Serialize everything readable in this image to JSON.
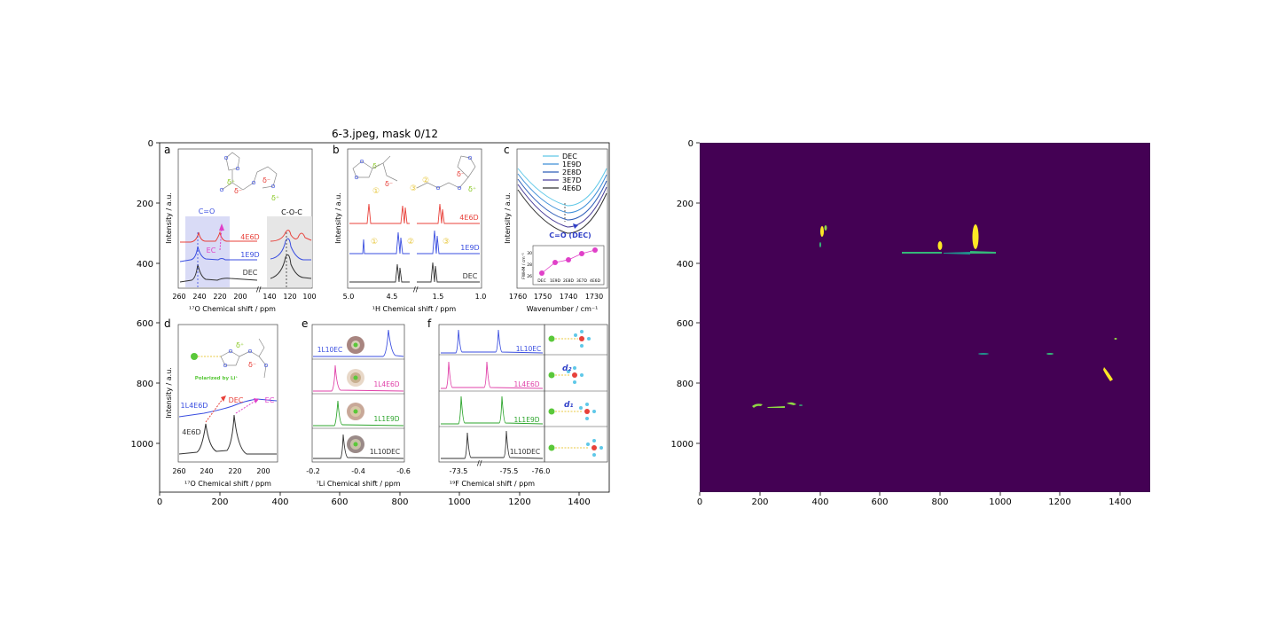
{
  "figure_title": "6-3.jpeg, mask 0/12",
  "left_axes": {
    "x_ticks": [
      "0",
      "200",
      "400",
      "600",
      "800",
      "1000",
      "1200",
      "1400"
    ],
    "y_ticks": [
      "0",
      "200",
      "400",
      "600",
      "800",
      "1000"
    ]
  },
  "right_axes": {
    "x_ticks": [
      "0",
      "200",
      "400",
      "600",
      "800",
      "1000",
      "1200",
      "1400"
    ],
    "y_ticks": [
      "0",
      "200",
      "400",
      "600",
      "800",
      "1000"
    ]
  },
  "panels": {
    "a": {
      "letter": "a",
      "ylabel": "Intensity / a.u.",
      "xlabel": "¹⁷O Chemical shift / ppm",
      "ticks": [
        "260",
        "240",
        "220",
        "200",
        "140",
        "120",
        "100"
      ],
      "label_co": "C=O",
      "label_coc": "C-O-C",
      "label_ec": "EC",
      "traces": [
        "4E6D",
        "1E9D",
        "DEC"
      ],
      "colors": [
        "#e8413a",
        "#3a4ee0",
        "#333333"
      ]
    },
    "b": {
      "letter": "b",
      "ylabel": "Intensity / a.u.",
      "xlabel": "¹H Chemical shift / ppm",
      "ticks": [
        "5.0",
        "4.5",
        "1.5",
        "1.0"
      ],
      "traces": [
        "4E6D",
        "1E9D",
        "DEC"
      ],
      "circled": [
        "①",
        "②",
        "③"
      ]
    },
    "c": {
      "letter": "c",
      "ylabel": "Intensity / a.u.",
      "xlabel": "Wavenumber / cm⁻¹",
      "ticks": [
        "1760",
        "1750",
        "1740",
        "1730"
      ],
      "legend": [
        "DEC",
        "1E9D",
        "2E8D",
        "3E7D",
        "4E6D"
      ],
      "legend_colors": [
        "#5fc8e8",
        "#3f8fd8",
        "#2f5db8",
        "#4a3f9a",
        "#333333"
      ],
      "annotation": "C=O (DEC)",
      "inset_ylabel": "FWHM / cm⁻¹",
      "inset_yticks": [
        "30",
        "28",
        "26"
      ],
      "inset_xticks": [
        "DEC",
        "1E9D",
        "2E8D",
        "3E7D",
        "4E6D"
      ]
    },
    "d": {
      "letter": "d",
      "ylabel": "Intensity / a.u.",
      "xlabel": "¹⁷O Chemical shift / ppm",
      "ticks": [
        "260",
        "240",
        "220",
        "200"
      ],
      "polarized": "Polarized by Li⁺",
      "traces": [
        "1L4E6D",
        "4E6D"
      ],
      "label_dec": "DEC",
      "label_ec": "EC"
    },
    "e": {
      "letter": "e",
      "xlabel": "⁷Li Chemical shift / ppm",
      "ticks": [
        "-0.2",
        "-0.4",
        "-0.6"
      ],
      "rows": [
        "1L10EC",
        "1L4E6D",
        "1L1E9D",
        "1L10DEC"
      ],
      "row_colors": [
        "#3a4ee0",
        "#e040a8",
        "#2ea52e",
        "#333333"
      ]
    },
    "f": {
      "letter": "f",
      "xlabel": "¹⁹F Chemical shift / ppm",
      "ticks": [
        "-73.5",
        "-75.5",
        "-76.0"
      ],
      "rows": [
        "1L10EC",
        "1L4E6D",
        "1L1E9D",
        "1L10DEC"
      ],
      "row_colors": [
        "#3a4ee0",
        "#e040a8",
        "#2ea52e",
        "#333333"
      ],
      "d_labels": [
        "d₂",
        "d₁"
      ]
    }
  },
  "chart_data": {
    "type": "heatmap",
    "description_axes": "Segmentation mask displayed as image; blobs are mask pixels (yellow/green) on purple background",
    "xlim": [
      0,
      1500
    ],
    "ylim": [
      1160,
      0
    ],
    "colors": {
      "background": "#440154",
      "mask_high": "#fde725",
      "mask_mid": "#35b779",
      "mask_edge": "#21918c"
    }
  }
}
